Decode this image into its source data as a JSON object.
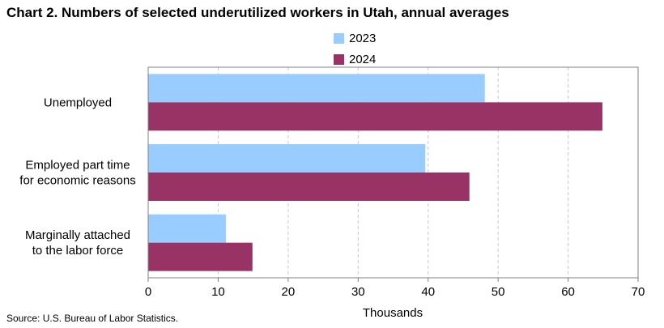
{
  "title": "Chart 2. Numbers of selected underutilized workers in Utah, annual averages",
  "source": "Source: U.S. Bureau of Labor Statistics.",
  "chart_data": {
    "type": "bar",
    "orientation": "horizontal",
    "categories": [
      [
        "Unemployed"
      ],
      [
        "Employed part time",
        "for economic reasons"
      ],
      [
        "Marginally attached",
        "to the labor force"
      ]
    ],
    "series": [
      {
        "name": "2023",
        "values": [
          48.1,
          39.6,
          11.1
        ],
        "color": "#99ccff"
      },
      {
        "name": "2024",
        "values": [
          64.9,
          45.9,
          14.9
        ],
        "color": "#993366"
      }
    ],
    "xlabel": "Thousands",
    "ylabel": "",
    "xlim": [
      0,
      70
    ],
    "xticks": [
      0,
      10,
      20,
      30,
      40,
      50,
      60,
      70
    ],
    "grid": "vertical dashed",
    "legend_position": "top-center"
  }
}
